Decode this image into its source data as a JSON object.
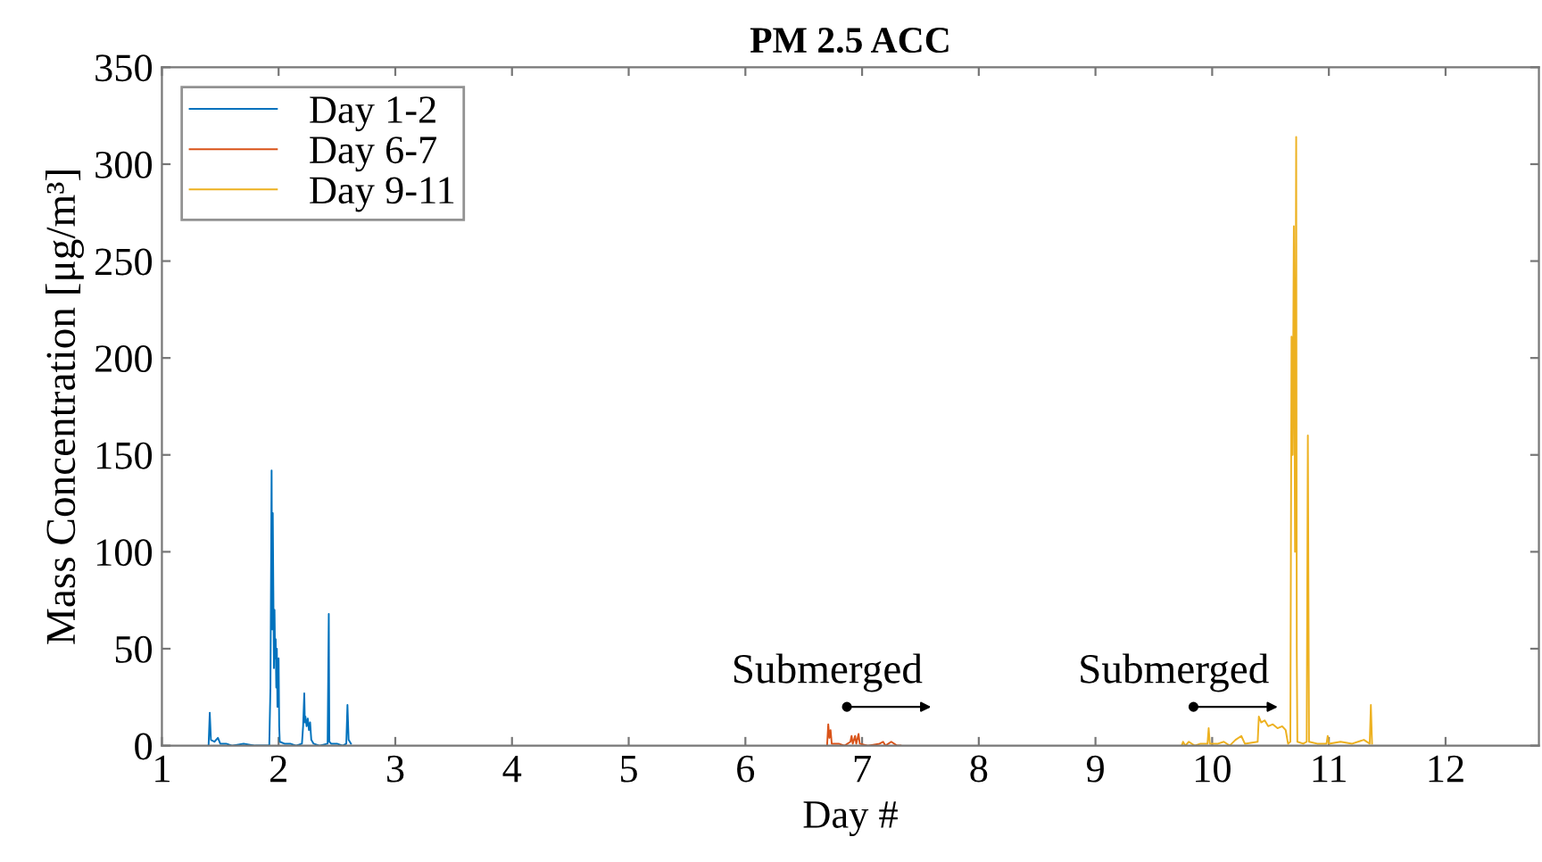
{
  "chart_data": {
    "type": "line",
    "title": "PM 2.5 ACC",
    "xlabel": "Day #",
    "ylabel": "Mass Concentration [μg/m³]",
    "xlim": [
      1,
      12.8
    ],
    "xticks": [
      1,
      2,
      3,
      4,
      5,
      6,
      7,
      8,
      9,
      10,
      11,
      12
    ],
    "ylim": [
      0,
      350
    ],
    "yticks": [
      0,
      50,
      100,
      150,
      200,
      250,
      300,
      350
    ],
    "grid": false,
    "legend": "top left",
    "marker": "none",
    "line_style": "solid",
    "series": [
      {
        "name": "Day 1-2",
        "color": "#0072bd",
        "x": [
          1.4,
          1.41,
          1.42,
          1.45,
          1.48,
          1.5,
          1.55,
          1.6,
          1.7,
          1.8,
          1.92,
          1.93,
          1.94,
          1.945,
          1.95,
          1.955,
          1.96,
          1.965,
          1.97,
          1.975,
          1.98,
          1.985,
          1.99,
          2.0,
          2.005,
          2.01,
          2.05,
          2.1,
          2.15,
          2.2,
          2.21,
          2.22,
          2.225,
          2.23,
          2.24,
          2.25,
          2.26,
          2.27,
          2.28,
          2.3,
          2.35,
          2.42,
          2.43,
          2.435,
          2.45,
          2.5,
          2.55,
          2.58,
          2.59,
          2.6,
          2.62
        ],
        "values": [
          0,
          17,
          3,
          2,
          4,
          1,
          1,
          0,
          1,
          0,
          0,
          30,
          142,
          60,
          120,
          80,
          40,
          70,
          45,
          55,
          30,
          50,
          20,
          45,
          10,
          2,
          1,
          1,
          0,
          1,
          10,
          27,
          12,
          15,
          10,
          14,
          8,
          12,
          3,
          1,
          0,
          1,
          68,
          2,
          1,
          1,
          0,
          1,
          21,
          3,
          1
        ]
      },
      {
        "name": "Day 6-7",
        "color": "#d95319",
        "x": [
          6.7,
          6.71,
          6.72,
          6.73,
          6.74,
          6.8,
          6.85,
          6.9,
          6.91,
          6.92,
          6.94,
          6.95,
          6.97,
          6.98,
          7.05,
          7.15,
          7.18,
          7.2,
          7.25,
          7.3,
          7.33
        ],
        "values": [
          0,
          11,
          4,
          8,
          1,
          1,
          0,
          2,
          5,
          1,
          5,
          1,
          6,
          1,
          0,
          1,
          2,
          0,
          2,
          0,
          0
        ]
      },
      {
        "name": "Day 9-11",
        "color": "#edb120",
        "x": [
          9.74,
          9.75,
          9.77,
          9.8,
          9.85,
          9.9,
          9.96,
          9.97,
          9.98,
          10.05,
          10.1,
          10.15,
          10.2,
          10.25,
          10.28,
          10.39,
          10.4,
          10.42,
          10.45,
          10.48,
          10.52,
          10.56,
          10.6,
          10.63,
          10.65,
          10.67,
          10.68,
          10.69,
          10.7,
          10.71,
          10.72,
          10.725,
          10.73,
          10.78,
          10.81,
          10.82,
          10.83,
          10.9,
          10.98,
          10.99,
          11.0,
          11.1,
          11.2,
          11.3,
          11.35,
          11.36,
          11.37
        ],
        "values": [
          0,
          2,
          0,
          2,
          0,
          1,
          1,
          9,
          1,
          1,
          2,
          0,
          3,
          5,
          1,
          2,
          15,
          12,
          13,
          10,
          11,
          9,
          10,
          8,
          1,
          2,
          211,
          150,
          268,
          100,
          314,
          50,
          2,
          1,
          2,
          160,
          2,
          1,
          1,
          5,
          1,
          2,
          1,
          3,
          1,
          21,
          1
        ]
      }
    ],
    "annotations": [
      {
        "text": "Submerged",
        "x": 6.87,
        "y": 20
      },
      {
        "text": "Submerged",
        "x": 9.84,
        "y": 20
      }
    ]
  }
}
